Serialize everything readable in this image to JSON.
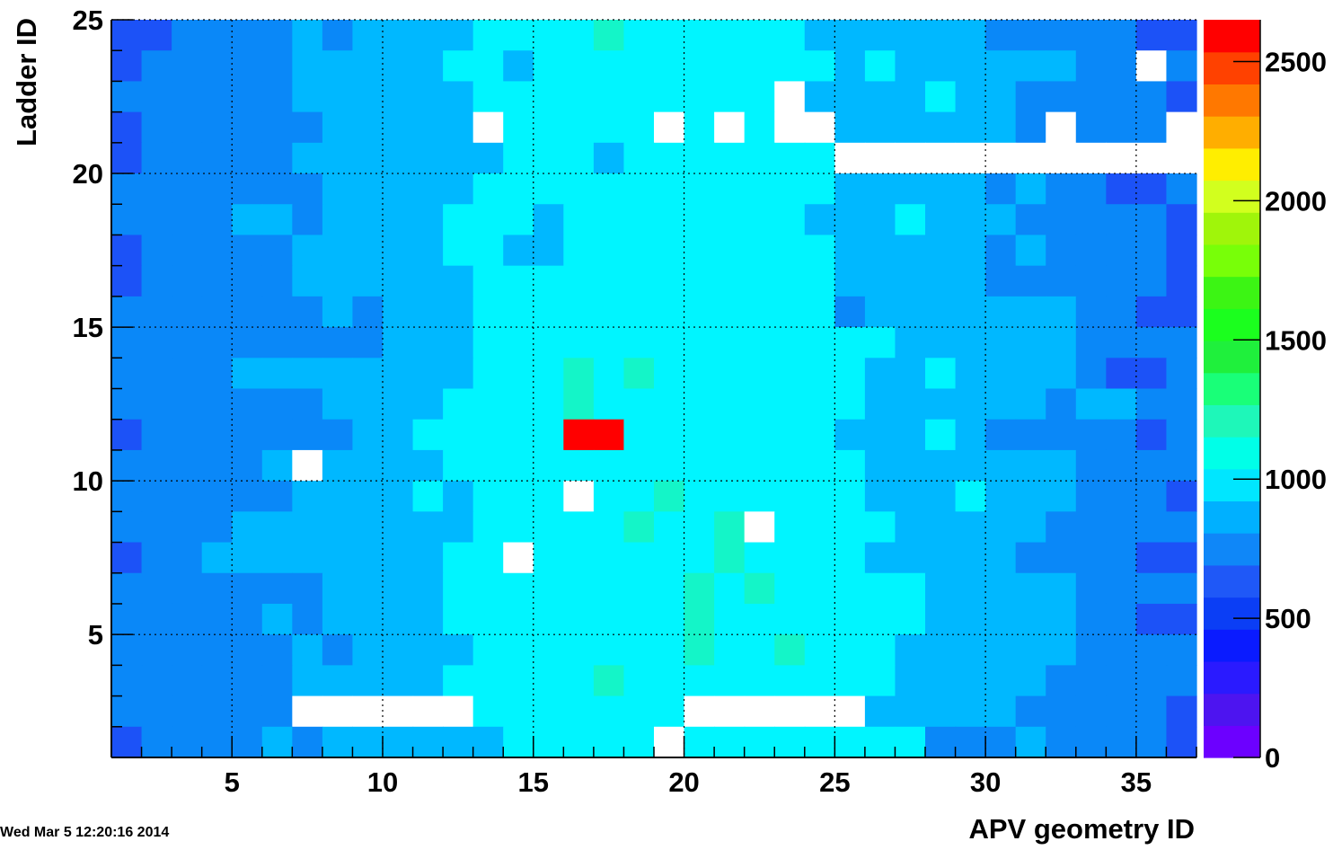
{
  "timestamp": "Wed Mar  5 12:20:16 2014",
  "chart_data": {
    "type": "heatmap",
    "title": "",
    "xlabel": "APV geometry ID",
    "ylabel": "Ladder ID",
    "xlim": [
      1,
      37
    ],
    "ylim": [
      1,
      25
    ],
    "x_ticks": [
      5,
      10,
      15,
      20,
      25,
      30,
      35
    ],
    "y_ticks": [
      5,
      10,
      15,
      20,
      25
    ],
    "z_range": [
      0,
      2650
    ],
    "z_ticks": [
      0,
      500,
      1000,
      1500,
      2000,
      2500
    ],
    "grid": true,
    "palette": [
      "#6c00ff",
      "#4d14f0",
      "#2a1aff",
      "#0a1bff",
      "#0b3ef5",
      "#1f58f7",
      "#0f87f8",
      "#00b0ff",
      "#00e6ff",
      "#00ffe8",
      "#1ef7b9",
      "#19ff78",
      "#1ff03c",
      "#1bff1e",
      "#3cf514",
      "#78ff08",
      "#a0f50a",
      "#d2ff1e",
      "#ffee00",
      "#ffae00",
      "#ff7800",
      "#ff4100",
      "#ff0000"
    ],
    "empty_cells_note": "",
    "rows_from_top": [
      "AABBBBCBCCCCDDDDEDDDDDDCCCCCCBBBBBAA",
      "ABBBBBCCCCCDDCDDDDDDDDDDCDCCCCCCBBwB",
      "BBBBBBCCCCCCDDDDDDDDDDwCCCCDCCBBBBBA",
      "ABBBBBBCCCCCwDDDDDwDwDwwCCCCCCBwBBBw",
      "ABBBBBCCCCCCCDDDCDDDDDDDwwwwwwwwwwww",
      "BBBBBBBCCCCCDDDDDDDDDDDDCCCCCBCBBAAB",
      "BBBBCCBCCCCDDDCDDDDDDDDCCCDCCCBBBBBA",
      "ABBBBBCCCCCDDCCDDDDDDDDDCCCCCBCBBBBA",
      "ABBBBBCCCCCCDDDDDDDDDDDDCCCCCBBBBBBA",
      "BBBBBBBCBCCCDDDDDDDDDDDDBCCCCCCCBBAA",
      "BBBBBBBBBCCCDDDDDDDDDDDDDDCCCCCCBBBB",
      "BBBBCCCCCCCCDDDEDEDDDDDDDCCDCCCCBAAB",
      "BBBBBBBCCCCDDDDEDDDDDDDDDCCCCCCBCCBB",
      "ABBBBBBBCCDDDDDRRDDDDDDDCCCDCBBBBBAB",
      "BBBBBCwCCCCDDDDDDDDDDDDDDCCCCCCCBBBB",
      "BBBBBBCCCCDCDDDwDDEDDDDDDCCCDCCCBBBA",
      "BBBBCCCCCCCCDDDDDEDDEwDDDDCCCCCBBBBB",
      "ABBCCCCCCCCDDwDDDDDDEDDDDCCCCCBBBBAA",
      "BBBBBBBCCCCDDDDDDDDEDEDDDDDCCCCCBBBB",
      "BBBBBCBCCCCDDDDDDDDEDDDDDDDCCCCCBBAA",
      "BBBBBBCBCCCCDDDDDDDEDDEDDDCCCCCCBBBB",
      "BBBBBBCCCCCDDDDDEDDDDDDDDDCCCCCBBBBB",
      "BBBBBBwwwwwwDDDDDDDwwwwwwCCCCCBBBBBA",
      "ABBBBCBCCCCCCDDDDDwDDDDDDDDBBBCBBBBA"
    ],
    "cell_codes": {
      "A": {
        "value": 400,
        "color": "#1c52f7"
      },
      "B": {
        "value": 600,
        "color": "#0a88f8"
      },
      "C": {
        "value": 730,
        "color": "#00b8ff"
      },
      "D": {
        "value": 880,
        "color": "#00f5ff"
      },
      "E": {
        "value": 980,
        "color": "#14f5c8"
      },
      "R": {
        "value": 2620,
        "color": "#ff0000"
      },
      "w": {
        "value": null,
        "color": "#ffffff"
      }
    }
  }
}
